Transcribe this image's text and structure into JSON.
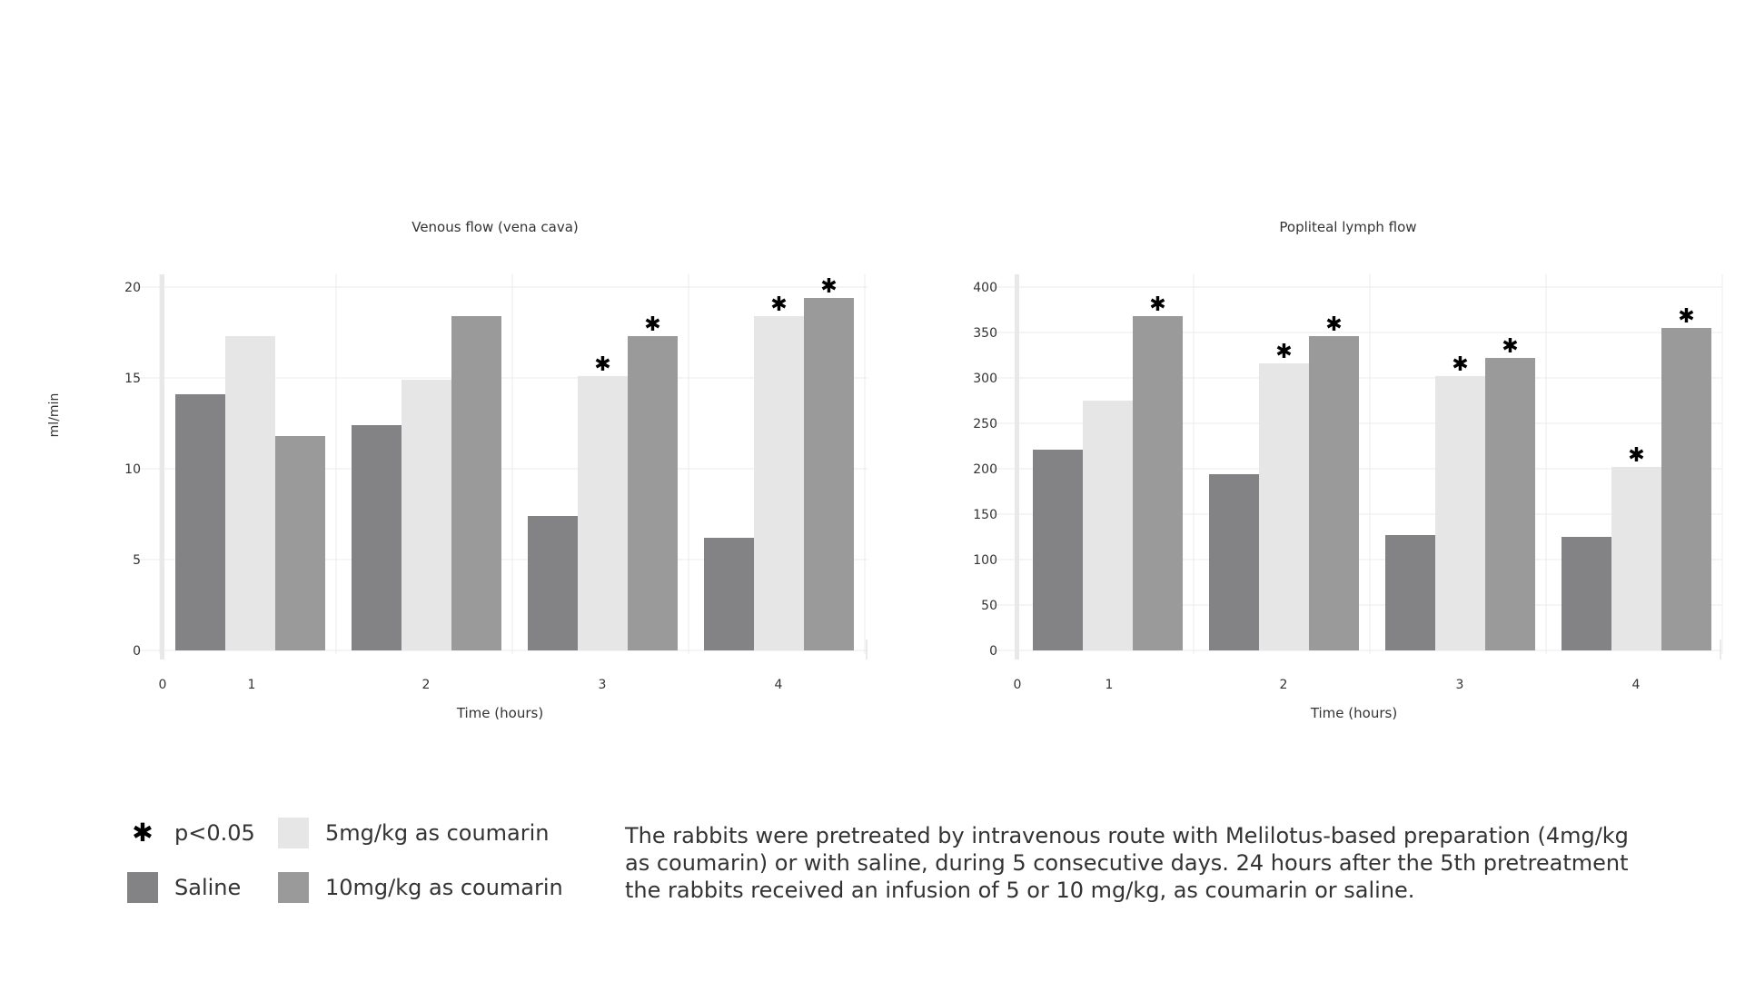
{
  "colors": {
    "saline": "#838386",
    "dose5": "#e6e6e7",
    "dose10": "#9a9a9b",
    "grid": "#ebebeb",
    "axis": "#d5d5d5",
    "text": "#333333"
  },
  "chart_data": [
    {
      "type": "bar",
      "title": "Venous flow  (vena cava)",
      "xlabel": "Time (hours)",
      "ylabel": "ml/min",
      "x_origin_label": "0",
      "categories": [
        "1",
        "2",
        "3",
        "4"
      ],
      "ylim": [
        0,
        20
      ],
      "yticks": [
        "0",
        "5",
        "10",
        "15",
        "20"
      ],
      "series": [
        {
          "name": "Saline",
          "values": [
            14.1,
            12.4,
            7.4,
            6.2
          ],
          "significant": [
            false,
            false,
            false,
            false
          ]
        },
        {
          "name": "5mg/kg as coumarin",
          "values": [
            17.3,
            14.9,
            15.1,
            18.4
          ],
          "significant": [
            false,
            false,
            true,
            true
          ]
        },
        {
          "name": "10mg/kg as coumarin",
          "values": [
            11.8,
            18.4,
            17.3,
            19.4
          ],
          "significant": [
            false,
            false,
            true,
            true
          ]
        }
      ]
    },
    {
      "type": "bar",
      "title": "Popliteal lymph flow",
      "xlabel": "Time (hours)",
      "ylabel": "",
      "x_origin_label": "0",
      "categories": [
        "1",
        "2",
        "3",
        "4"
      ],
      "ylim": [
        0,
        400
      ],
      "yticks": [
        "0",
        "50",
        "100",
        "150",
        "200",
        "250",
        "300",
        "350",
        "400"
      ],
      "series": [
        {
          "name": "Saline",
          "values": [
            221,
            194,
            127,
            125
          ],
          "significant": [
            false,
            false,
            false,
            false
          ]
        },
        {
          "name": "5mg/kg as coumarin",
          "values": [
            275,
            316,
            302,
            202
          ],
          "significant": [
            false,
            true,
            true,
            true
          ]
        },
        {
          "name": "10mg/kg as coumarin",
          "values": [
            368,
            346,
            322,
            355
          ],
          "significant": [
            true,
            true,
            true,
            true
          ]
        }
      ]
    }
  ],
  "legend": {
    "significance_symbol": "✱",
    "significance_label": "p<0.05",
    "saline_label": "Saline",
    "dose5_label": "5mg/kg as coumarin",
    "dose10_label": "10mg/kg as coumarin"
  },
  "note": {
    "line1": "The rabbits were pretreated by intravenous route with Melilotus-based preparation (4mg/kg",
    "line2": "as coumarin) or with saline, during 5 consecutive days. 24 hours after the 5th pretreatment",
    "line3": "the rabbits received an infusion of 5 or 10 mg/kg, as coumarin or saline."
  }
}
